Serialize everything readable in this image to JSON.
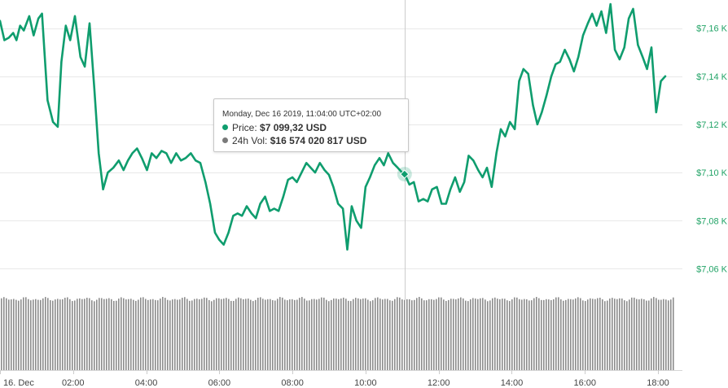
{
  "colors": {
    "price": "#0f9d6e",
    "volume": "#8c8c8c",
    "grid": "#e8e8e8",
    "y_tick": "#21a366",
    "x_tick": "#444444"
  },
  "tooltip": {
    "date": "Monday, Dec 16 2019, 11:04:00 UTC+02:00",
    "price_label": "Price: ",
    "price_value": "$7 099,32 USD",
    "vol_label": "24h Vol: ",
    "vol_value": "$16 574 020 817 USD",
    "price_dot_color": "#0f9d6e",
    "vol_dot_color": "#7a7a7a"
  },
  "chart_data": {
    "type": "line",
    "title": "",
    "xlabel": "",
    "ylabel": "",
    "x_ticks": [
      "16. Dec",
      "02:00",
      "04:00",
      "06:00",
      "08:00",
      "10:00",
      "12:00",
      "14:00",
      "16:00",
      "18:00"
    ],
    "x_tick_hours": [
      0,
      2,
      4,
      6,
      8,
      10,
      12,
      14,
      16,
      18
    ],
    "y_ticks": [
      "$7,06 K",
      "$7,08 K",
      "$7,10 K",
      "$7,12 K",
      "$7,14 K",
      "$7,16 K"
    ],
    "y_tick_values": [
      7060,
      7080,
      7100,
      7120,
      7140,
      7160
    ],
    "ylim": [
      7050,
      7170
    ],
    "xlim": [
      0,
      18.4
    ],
    "hover_hour": 11.067,
    "hover_value": 7099.32,
    "series": [
      {
        "kind": "price",
        "x": [
          0,
          0.12,
          0.24,
          0.36,
          0.45,
          0.55,
          0.65,
          0.8,
          0.92,
          1.05,
          1.15,
          1.3,
          1.45,
          1.58,
          1.68,
          1.8,
          1.92,
          2.05,
          2.2,
          2.32,
          2.45,
          2.58,
          2.7,
          2.82,
          2.95,
          3.1,
          3.25,
          3.38,
          3.5,
          3.62,
          3.75,
          3.88,
          4.02,
          4.15,
          4.28,
          4.42,
          4.55,
          4.68,
          4.82,
          4.95,
          5.08,
          5.22,
          5.35,
          5.48,
          5.62,
          5.75,
          5.88,
          6.0,
          6.12,
          6.25,
          6.38,
          6.5,
          6.62,
          6.75,
          6.88,
          7.0,
          7.12,
          7.25,
          7.38,
          7.5,
          7.62,
          7.75,
          7.88,
          8.0,
          8.12,
          8.25,
          8.38,
          8.5,
          8.62,
          8.75,
          8.88,
          9.0,
          9.12,
          9.25,
          9.38,
          9.5,
          9.62,
          9.75,
          9.88,
          10.0,
          10.12,
          10.25,
          10.38,
          10.5,
          10.62,
          10.75,
          10.88,
          11.0,
          11.07,
          11.2,
          11.32,
          11.45,
          11.58,
          11.7,
          11.82,
          11.95,
          12.08,
          12.2,
          12.32,
          12.45,
          12.58,
          12.7,
          12.82,
          12.95,
          13.08,
          13.2,
          13.32,
          13.45,
          13.58,
          13.7,
          13.82,
          13.95,
          14.08,
          14.2,
          14.32,
          14.45,
          14.58,
          14.7,
          14.82,
          14.95,
          15.08,
          15.2,
          15.32,
          15.45,
          15.58,
          15.7,
          15.82,
          15.95,
          16.08,
          16.2,
          16.32,
          16.45,
          16.58,
          16.7,
          16.82,
          16.95,
          17.08,
          17.2,
          17.32,
          17.45,
          17.58,
          17.7,
          17.82,
          17.95,
          18.08,
          18.2
        ],
        "y": [
          7163,
          7155,
          7156,
          7158,
          7155,
          7161,
          7159,
          7165,
          7157,
          7164,
          7166,
          7130,
          7121,
          7119,
          7146,
          7161,
          7155,
          7165,
          7148,
          7144,
          7162,
          7135,
          7108,
          7093,
          7100,
          7102,
          7105,
          7101,
          7105,
          7108,
          7110,
          7106,
          7101,
          7108,
          7106,
          7109,
          7108,
          7104,
          7108,
          7105,
          7106,
          7108,
          7105,
          7104,
          7096,
          7087,
          7075,
          7072,
          7070,
          7075,
          7082,
          7083,
          7082,
          7086,
          7083,
          7081,
          7087,
          7090,
          7084,
          7085,
          7084,
          7090,
          7097,
          7098,
          7096,
          7100,
          7104,
          7102,
          7100,
          7104,
          7101,
          7099,
          7094,
          7087,
          7085,
          7068,
          7086,
          7080,
          7077,
          7094,
          7098,
          7103,
          7106,
          7103,
          7108,
          7104,
          7102,
          7100,
          7099.32,
          7095,
          7096,
          7088,
          7089,
          7088,
          7093,
          7094,
          7087,
          7087,
          7093,
          7098,
          7092,
          7096,
          7107,
          7105,
          7101,
          7098,
          7102,
          7094,
          7108,
          7118,
          7115,
          7121,
          7118,
          7138,
          7143,
          7141,
          7128,
          7120,
          7125,
          7132,
          7140,
          7145,
          7146,
          7151,
          7147,
          7142,
          7148,
          7157,
          7162,
          7166,
          7161,
          7167,
          7158,
          7170,
          7151,
          7147,
          7152,
          7164,
          7168,
          7153,
          7148,
          7143,
          7152,
          7125,
          7138,
          7140
        ]
      },
      {
        "kind": "volume",
        "min_fraction": 0.94,
        "hover_bar_fraction": 0.942
      }
    ]
  }
}
